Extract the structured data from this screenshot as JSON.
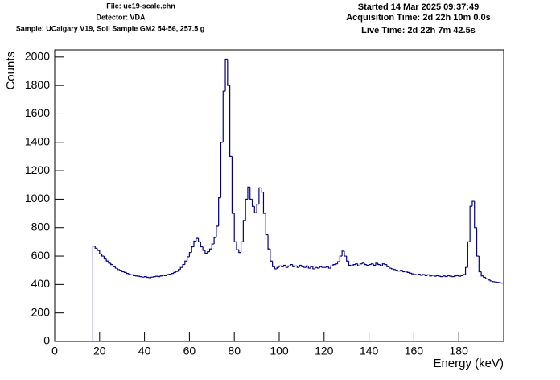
{
  "chart_data": {
    "type": "histogram",
    "header_left": [
      "File: uc19-scale.chn",
      "Detector: VDA",
      "Sample: UCalgary V19, Soil Sample GM2 54-56, 257.5 g"
    ],
    "header_right": [
      "Started 14 Mar 2025 09:37:49",
      "Acquisition Time: 2d 22h 10m 0.0s",
      "Live Time: 2d 22h 7m 42.5s"
    ],
    "x_label": "Energy (keV)",
    "y_label": "Counts",
    "color": "#000080",
    "xlim": [
      0,
      200
    ],
    "ylim": [
      0,
      2050
    ],
    "xticks": [
      0,
      20,
      40,
      60,
      80,
      100,
      120,
      140,
      160,
      180
    ],
    "yticks": [
      0,
      200,
      400,
      600,
      800,
      1000,
      1200,
      1400,
      1600,
      1800,
      2000
    ],
    "bins": [
      17,
      18,
      19,
      20,
      21,
      22,
      23,
      24,
      25,
      26,
      27,
      28,
      29,
      30,
      31,
      32,
      33,
      34,
      35,
      36,
      37,
      38,
      39,
      40,
      41,
      42,
      43,
      44,
      45,
      46,
      47,
      48,
      49,
      50,
      51,
      52,
      53,
      54,
      55,
      56,
      57,
      58,
      59,
      60,
      61,
      62,
      63,
      64,
      65,
      66,
      67,
      68,
      69,
      70,
      71,
      72,
      73,
      74,
      75,
      76,
      77,
      78,
      79,
      80,
      81,
      82,
      83,
      84,
      85,
      86,
      87,
      88,
      89,
      90,
      91,
      92,
      93,
      94,
      95,
      96,
      97,
      98,
      99,
      100,
      101,
      102,
      103,
      104,
      105,
      106,
      107,
      108,
      109,
      110,
      111,
      112,
      113,
      114,
      115,
      116,
      117,
      118,
      119,
      120,
      121,
      122,
      123,
      124,
      125,
      126,
      127,
      128,
      129,
      130,
      131,
      132,
      133,
      134,
      135,
      136,
      137,
      138,
      139,
      140,
      141,
      142,
      143,
      144,
      145,
      146,
      147,
      148,
      149,
      150,
      151,
      152,
      153,
      154,
      155,
      156,
      157,
      158,
      159,
      160,
      161,
      162,
      163,
      164,
      165,
      166,
      167,
      168,
      169,
      170,
      171,
      172,
      173,
      174,
      175,
      176,
      177,
      178,
      179,
      180,
      181,
      182,
      183,
      184,
      185,
      186,
      187,
      188,
      189,
      190,
      191,
      192,
      193,
      194,
      195,
      196,
      197,
      198,
      199,
      200
    ],
    "values": [
      670,
      655,
      640,
      615,
      600,
      580,
      565,
      550,
      540,
      525,
      515,
      505,
      500,
      490,
      485,
      478,
      470,
      468,
      462,
      460,
      458,
      455,
      452,
      455,
      450,
      448,
      452,
      455,
      458,
      455,
      460,
      465,
      462,
      470,
      472,
      478,
      485,
      492,
      505,
      520,
      540,
      565,
      595,
      625,
      665,
      705,
      725,
      700,
      665,
      640,
      620,
      630,
      650,
      685,
      730,
      810,
      1010,
      1400,
      1760,
      1985,
      1800,
      1300,
      900,
      700,
      645,
      625,
      700,
      850,
      1000,
      1085,
      1000,
      950,
      905,
      965,
      1080,
      1050,
      900,
      750,
      650,
      565,
      525,
      510,
      520,
      530,
      525,
      535,
      520,
      530,
      540,
      525,
      530,
      520,
      535,
      525,
      520,
      530,
      515,
      525,
      510,
      520,
      515,
      525,
      520,
      520,
      525,
      515,
      530,
      540,
      545,
      560,
      600,
      635,
      600,
      565,
      535,
      530,
      540,
      545,
      530,
      545,
      550,
      540,
      535,
      540,
      545,
      535,
      550,
      540,
      530,
      545,
      540,
      525,
      515,
      510,
      505,
      500,
      495,
      500,
      490,
      495,
      485,
      480,
      475,
      470,
      468,
      472,
      465,
      470,
      462,
      468,
      460,
      465,
      458,
      462,
      458,
      455,
      460,
      456,
      462,
      458,
      455,
      460,
      462,
      458,
      462,
      470,
      520,
      700,
      950,
      985,
      800,
      600,
      490,
      460,
      450,
      440,
      432,
      425,
      420,
      418,
      415,
      412,
      410
    ]
  }
}
